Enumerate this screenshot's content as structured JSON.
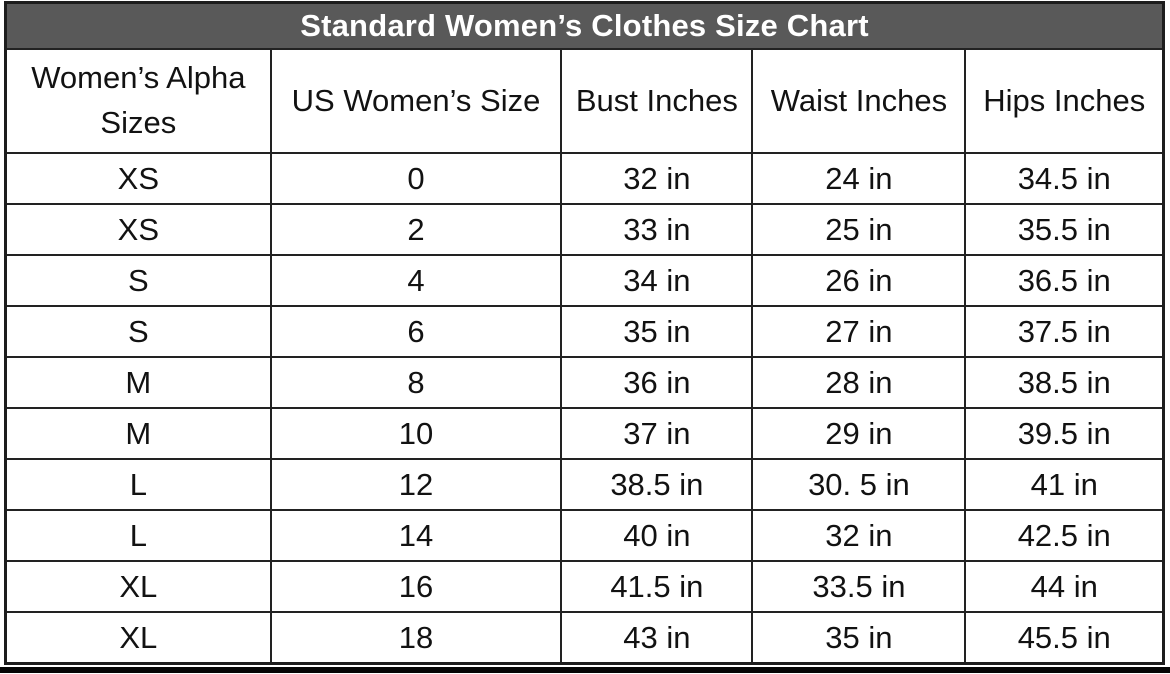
{
  "chart_data": {
    "type": "table",
    "title": "Standard Women’s Clothes Size Chart",
    "columns": [
      "Women’s Alpha Sizes",
      "US Women’s Size",
      "Bust Inches",
      "Waist Inches",
      "Hips Inches"
    ],
    "rows": [
      [
        "XS",
        "0",
        "32 in",
        "24 in",
        "34.5 in"
      ],
      [
        "XS",
        "2",
        "33 in",
        "25 in",
        "35.5 in"
      ],
      [
        "S",
        "4",
        "34 in",
        "26 in",
        "36.5 in"
      ],
      [
        "S",
        "6",
        "35 in",
        "27 in",
        "37.5 in"
      ],
      [
        "M",
        "8",
        "36 in",
        "28 in",
        "38.5 in"
      ],
      [
        "M",
        "10",
        "37 in",
        "29 in",
        "39.5 in"
      ],
      [
        "L",
        "12",
        "38.5 in",
        "30. 5 in",
        "41 in"
      ],
      [
        "L",
        "14",
        "40 in",
        "32 in",
        "42.5 in"
      ],
      [
        "XL",
        "16",
        "41.5 in",
        "33.5 in",
        "44 in"
      ],
      [
        "XL",
        "18",
        "43 in",
        "35 in",
        "45.5 in"
      ]
    ],
    "layout": {
      "legend": "none",
      "grid": "all-borders",
      "column_width_percent": [
        22.9,
        25.1,
        16.5,
        18.4,
        17.1
      ]
    }
  },
  "colors": {
    "title_background": "#595959",
    "title_text": "#ffffff",
    "cell_text": "#121212",
    "border": "#222222",
    "page_background": "#ffffff",
    "bottom_bar": "#050505"
  }
}
